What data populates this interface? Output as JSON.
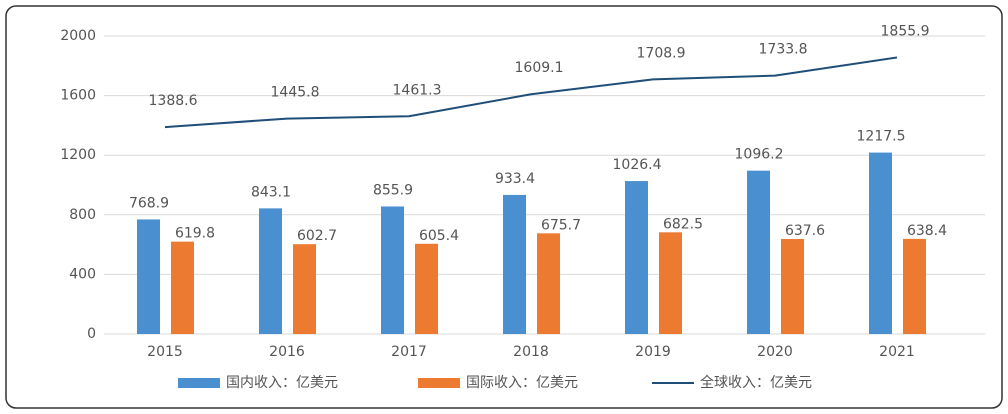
{
  "chart_data": {
    "type": "bar",
    "categories": [
      "2015",
      "2016",
      "2017",
      "2018",
      "2019",
      "2020",
      "2021"
    ],
    "series": [
      {
        "name": "国内收入：亿美元",
        "color": "#4a8fd0",
        "type": "bar",
        "values": [
          768.9,
          843.1,
          855.9,
          933.4,
          1026.4,
          1096.2,
          1217.5
        ]
      },
      {
        "name": "国际收入：亿美元",
        "color": "#ec7a30",
        "type": "bar",
        "values": [
          619.8,
          602.7,
          605.4,
          675.7,
          682.5,
          637.6,
          638.4
        ]
      },
      {
        "name": "全球收入：亿美元",
        "color": "#1f4e79",
        "type": "line",
        "values": [
          1388.6,
          1445.8,
          1461.3,
          1609.1,
          1708.9,
          1733.8,
          1855.9
        ]
      }
    ],
    "ylim": [
      0,
      2000
    ],
    "yticks": [
      0,
      400,
      800,
      1200,
      1600,
      2000
    ],
    "grid": true,
    "legend": "bottom"
  }
}
